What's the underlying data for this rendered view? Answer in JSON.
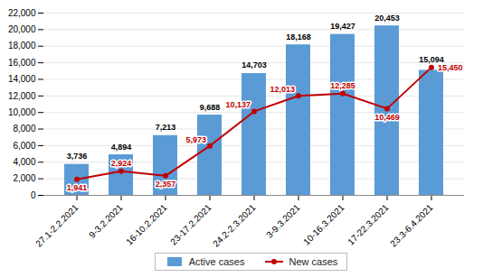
{
  "chart_data": {
    "type": "bar",
    "categories": [
      "27.1-2.2.2021",
      "9-3.2.2021",
      "16-10.2.2021",
      "23-17.2.2021",
      "24.2-2.3.2021",
      "3-9.3.2021",
      "10-16.3.2021",
      "17-22.3.2021",
      "23.3-6.4.2021"
    ],
    "series": [
      {
        "name": "Active cases",
        "type": "bar",
        "color": "#5b9bd5",
        "values": [
          3736,
          4894,
          7213,
          9688,
          14703,
          18168,
          19427,
          20453,
          15094
        ],
        "value_labels": [
          "3,736",
          "4,894",
          "7,213",
          "9,688",
          "14,703",
          "18,168",
          "19,427",
          "20,453",
          "15,094"
        ]
      },
      {
        "name": "New cases",
        "type": "line",
        "color": "#c00000",
        "marker": "circle",
        "values": [
          1941,
          2924,
          2357,
          5973,
          10137,
          12013,
          12285,
          10469,
          15450
        ],
        "value_labels": [
          "1,941",
          "2,924",
          "2,357",
          "5,973",
          "10,137",
          "12,013",
          "12,285",
          "10,469",
          "15,450"
        ]
      }
    ],
    "ylim": [
      0,
      22000
    ],
    "yticks": [
      0,
      {
        "value": 2000,
        "label": "2,000"
      },
      {
        "value": 4000,
        "label": "4,000"
      },
      {
        "value": 6000,
        "label": "6,000"
      },
      {
        "value": 8000,
        "label": "8,000"
      },
      {
        "value": 10000,
        "label": "10,000"
      },
      {
        "value": 12000,
        "label": "12,000"
      },
      {
        "value": 14000,
        "label": "14,000"
      },
      {
        "value": 16000,
        "label": "16,000"
      },
      {
        "value": 18000,
        "label": "18,000"
      },
      {
        "value": 20000,
        "label": "20,000"
      },
      {
        "value": 22000,
        "label": "22,000"
      }
    ],
    "grid": true,
    "legend": "bottom",
    "data_labels": true
  }
}
